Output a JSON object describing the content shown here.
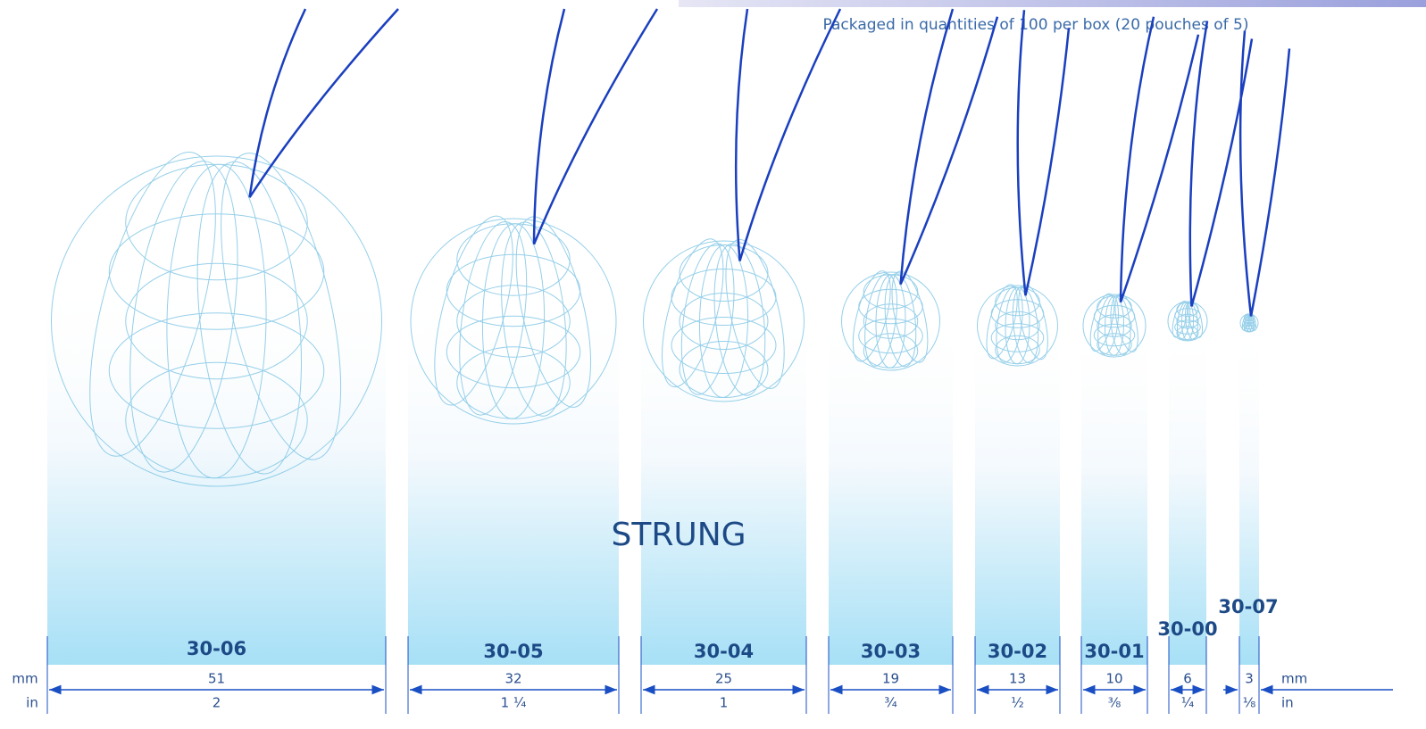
{
  "note": "Packaged in quantities of 100 per box (20 pouches of 5)",
  "center_label": "STRUNG",
  "units": {
    "mm": "mm",
    "in": "in"
  },
  "items": [
    {
      "code": "30-06",
      "mm": "51",
      "in": "2"
    },
    {
      "code": "30-05",
      "mm": "32",
      "in": "1 ¼"
    },
    {
      "code": "30-04",
      "mm": "25",
      "in": "1"
    },
    {
      "code": "30-03",
      "mm": "19",
      "in": "¾"
    },
    {
      "code": "30-02",
      "mm": "13",
      "in": "½"
    },
    {
      "code": "30-01",
      "mm": "10",
      "in": "⅜"
    },
    {
      "code": "30-00",
      "mm": "6",
      "in": "¼"
    },
    {
      "code": "30-07",
      "mm": "3",
      "in": "⅛"
    }
  ]
}
